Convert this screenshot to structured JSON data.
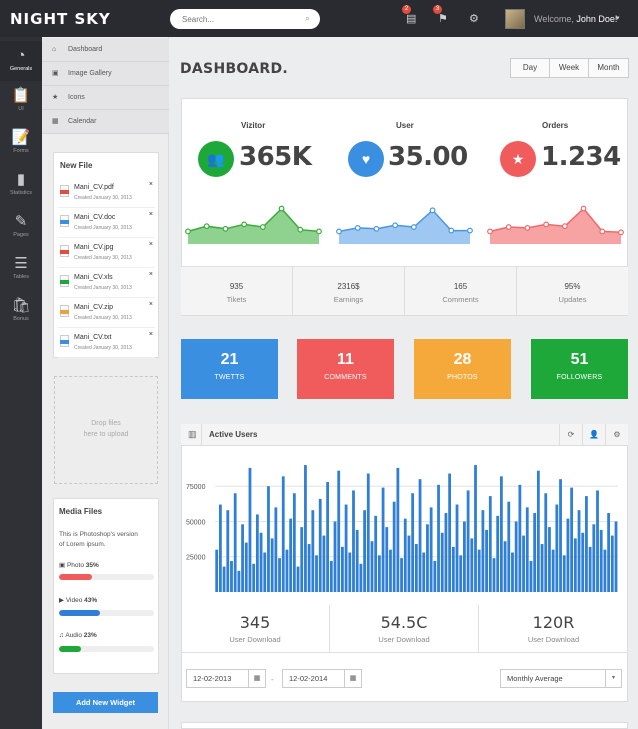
{
  "app": {
    "logo": "NIGHT SKY"
  },
  "topbar": {
    "search_placeholder": "Search...",
    "search_icon": "magnifier-icon",
    "notif_messages": "2",
    "notif_flags": "3",
    "welcome_prefix": "Welcome,",
    "user_name": "John Doe!"
  },
  "leftnav": [
    {
      "icon": "dashboard-gauge-icon",
      "glyph": "◔",
      "label": "Generals"
    },
    {
      "icon": "clipboard-icon",
      "glyph": "📋",
      "label": "UI"
    },
    {
      "icon": "forms-icon",
      "glyph": "📝",
      "label": "Forms"
    },
    {
      "icon": "statistics-icon",
      "glyph": "▮",
      "label": "Statistics"
    },
    {
      "icon": "pages-icon",
      "glyph": "✎",
      "label": "Pages"
    },
    {
      "icon": "tables-icon",
      "glyph": "☰",
      "label": "Tables"
    },
    {
      "icon": "bonus-icon",
      "glyph": "🛍",
      "label": "Bonus"
    }
  ],
  "submenu": [
    {
      "icon": "home-icon",
      "glyph": "⌂",
      "label": "Dashboard"
    },
    {
      "icon": "image-icon",
      "glyph": "▣",
      "label": "Image Gallery"
    },
    {
      "icon": "star-icon",
      "glyph": "★",
      "label": "Icons"
    },
    {
      "icon": "calendar-icon",
      "glyph": "▦",
      "label": "Calendar"
    }
  ],
  "new_file": {
    "title": "New File",
    "files": [
      {
        "name": "Mani_CV.pdf",
        "date": "Created January 30, 2013",
        "color": "#e24e3c"
      },
      {
        "name": "Mani_CV.doc",
        "date": "Created January 30, 2013",
        "color": "#3b8fe0"
      },
      {
        "name": "Mani_CV.jpg",
        "date": "Created January 30, 2013",
        "color": "#e24e3c"
      },
      {
        "name": "Mani_CV.xls",
        "date": "Created January 30, 2013",
        "color": "#1ea83a"
      },
      {
        "name": "Mani_CV.zip",
        "date": "Created January 30, 2013",
        "color": "#e8a33a"
      },
      {
        "name": "Mani_CV.txt",
        "date": "Created January 30, 2013",
        "color": "#3b8fe0"
      }
    ],
    "remove_glyph": "×"
  },
  "dropzone": {
    "line1": "Drop files",
    "line2": "here to upload"
  },
  "media": {
    "title": "Media Files",
    "desc_line1": "This is Photoshop's version",
    "desc_line2": "of Lorem ipsum.",
    "items": [
      {
        "icon": "photo-icon",
        "glyph": "▣",
        "label": "Photo",
        "pct": "35%",
        "value": 35,
        "color": "#f05b5b"
      },
      {
        "icon": "video-icon",
        "glyph": "▶",
        "label": "Video",
        "pct": "43%",
        "value": 43,
        "color": "#2f7fd6"
      },
      {
        "icon": "audio-icon",
        "glyph": "♫",
        "label": "Audio",
        "pct": "23%",
        "value": 23,
        "color": "#1ea83a"
      }
    ]
  },
  "add_widget": "Add New Widget",
  "main": {
    "title": "DASHBOARD.",
    "range_buttons": [
      "Day",
      "Week",
      "Month"
    ]
  },
  "stats": [
    {
      "label": "Vizitor",
      "value": "365K",
      "color": "#1ea83a",
      "icon": "users-icon",
      "glyph": "👥",
      "fill": "#8fd18f",
      "stroke": "#3cab3c"
    },
    {
      "label": "User",
      "value": "35.00",
      "color": "#3b8fe0",
      "icon": "heart-icon",
      "glyph": "♥",
      "fill": "#9ec7f2",
      "stroke": "#4a96df"
    },
    {
      "label": "Orders",
      "value": "1.234",
      "color": "#f05b5b",
      "icon": "star-icon",
      "glyph": "★",
      "fill": "#f7a3a3",
      "stroke": "#ee6a6a"
    }
  ],
  "summary": [
    {
      "value": "935",
      "label": "Tikets"
    },
    {
      "value": "2316$",
      "label": "Earnings"
    },
    {
      "value": "165",
      "label": "Comments"
    },
    {
      "value": "95%",
      "label": "Updates"
    }
  ],
  "tiles": [
    {
      "value": "21",
      "label": "TWETTS",
      "color": "#3b8fe0"
    },
    {
      "value": "11",
      "label": "COMMENTS",
      "color": "#f05b5b"
    },
    {
      "value": "28",
      "label": "PHOTOS",
      "color": "#f6a93b"
    },
    {
      "value": "51",
      "label": "FOLLOWERS",
      "color": "#1ea83a"
    }
  ],
  "active_users": {
    "title": "Active Users",
    "header_icon": "bar-chart-icon",
    "action_icons": [
      "refresh-icon",
      "user-icon",
      "settings-icon"
    ],
    "action_glyphs": [
      "⟳",
      "👤",
      "⚙"
    ]
  },
  "chart_data": [
    {
      "type": "area",
      "title": "",
      "x": [
        1,
        2,
        3,
        4,
        5,
        6,
        7,
        8
      ],
      "series": [
        {
          "values": [
            12,
            18,
            15,
            20,
            17,
            38,
            14,
            12
          ]
        },
        {
          "values": [
            12,
            16,
            15,
            19,
            17,
            36,
            13,
            13
          ]
        },
        {
          "values": [
            12,
            17,
            16,
            20,
            18,
            38,
            12,
            11
          ]
        }
      ],
      "ylim": [
        0,
        50
      ]
    },
    {
      "type": "bar",
      "title": "Active Users",
      "yticks": [
        25000,
        50000,
        75000
      ],
      "ylim": [
        0,
        95000
      ],
      "values": [
        30000,
        62000,
        18000,
        58000,
        22000,
        70000,
        15000,
        48000,
        35000,
        88000,
        20000,
        55000,
        42000,
        28000,
        75000,
        38000,
        60000,
        24000,
        82000,
        30000,
        52000,
        70000,
        18000,
        46000,
        90000,
        34000,
        58000,
        26000,
        66000,
        40000,
        78000,
        22000,
        50000,
        86000,
        32000,
        62000,
        28000,
        72000,
        44000,
        20000,
        58000,
        84000,
        36000,
        54000,
        26000,
        74000,
        46000,
        30000,
        64000,
        88000,
        24000,
        52000,
        40000,
        70000,
        34000,
        80000,
        28000,
        48000,
        60000,
        22000,
        76000,
        42000,
        56000,
        84000,
        32000,
        62000,
        26000,
        50000,
        72000,
        38000,
        90000,
        30000,
        58000,
        44000,
        68000,
        24000,
        54000,
        82000,
        36000,
        64000,
        28000,
        50000,
        76000,
        40000,
        60000,
        22000,
        56000,
        86000,
        34000,
        70000,
        46000,
        30000,
        62000,
        80000,
        26000,
        52000,
        74000,
        38000,
        58000,
        42000,
        68000,
        32000,
        48000,
        72000,
        44000,
        30000,
        56000,
        40000,
        50000
      ],
      "color": "#2f7fd6"
    }
  ],
  "downloads": [
    {
      "value": "345",
      "label": "User Download"
    },
    {
      "value": "54.5C",
      "label": "User Download"
    },
    {
      "value": "120R",
      "label": "User Download"
    }
  ],
  "filters": {
    "date_from": "12-02-2013",
    "date_to": "12-02-2014",
    "separator": "-",
    "average": "Monthly Average",
    "calendar_glyph": "▦",
    "caret_glyph": "▾"
  }
}
